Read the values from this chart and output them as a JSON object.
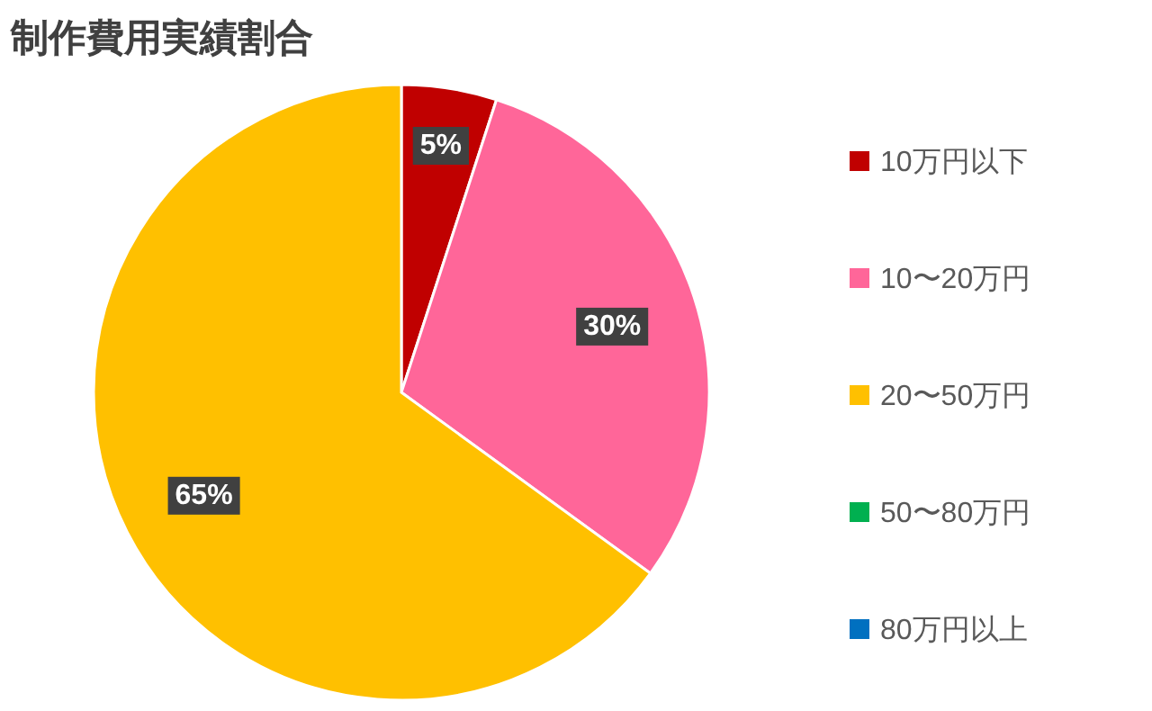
{
  "chart_data": {
    "type": "pie",
    "title": "制作費用実績割合",
    "categories": [
      "10万円以下",
      "10〜20万円",
      "20〜50万円",
      "50〜80万円",
      "80万円以上"
    ],
    "values": [
      5,
      30,
      65,
      0,
      0
    ],
    "colors": [
      "#c00000",
      "#ff6699",
      "#ffc000",
      "#00b050",
      "#0070c0"
    ],
    "value_labels": [
      "5%",
      "30%",
      "65%",
      null,
      null
    ],
    "legend": "right"
  }
}
